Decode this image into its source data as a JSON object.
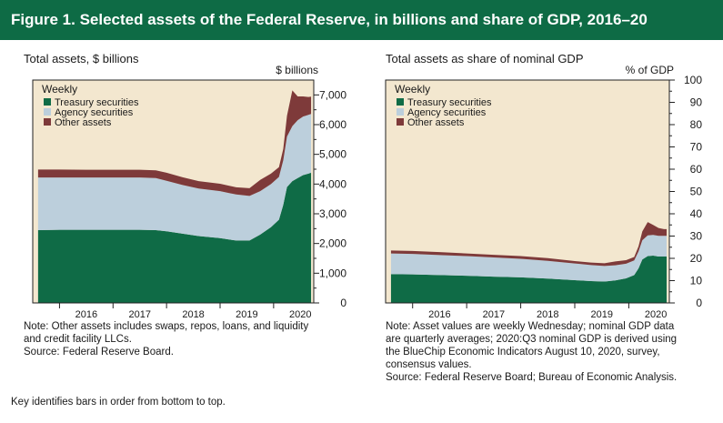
{
  "figure_title": "Figure 1. Selected assets of the Federal Reserve, in billions and share of GDP, 2016–20",
  "footer_note": "Key identifies bars in order from bottom to top.",
  "colors": {
    "banner": "#0e6b45",
    "treasury": "#0f6b46",
    "agency": "#bccfdc",
    "other": "#7e3a3a",
    "plot_bg": "#f3e7cf"
  },
  "chart_data": [
    {
      "type": "area",
      "title": "Total assets, $ billions",
      "ylabel": "$ billions",
      "legend_title": "Weekly",
      "legend_position": "top-left",
      "xlim": [
        2015.5,
        2020.75
      ],
      "ylim": [
        0,
        7500
      ],
      "x_ticks": [
        2016,
        2017,
        2018,
        2019,
        2020
      ],
      "y_ticks": [
        0,
        1000,
        2000,
        3000,
        4000,
        5000,
        6000,
        7000
      ],
      "y_tick_labels": [
        "0",
        "1,000",
        "2,000",
        "3,000",
        "4,000",
        "5,000",
        "6,000",
        "7,000"
      ],
      "x": [
        2015.6,
        2016.0,
        2016.5,
        2017.0,
        2017.5,
        2017.8,
        2018.0,
        2018.3,
        2018.6,
        2019.0,
        2019.3,
        2019.55,
        2019.75,
        2019.95,
        2020.1,
        2020.18,
        2020.25,
        2020.35,
        2020.45,
        2020.55,
        2020.65,
        2020.7
      ],
      "series": [
        {
          "name": "Treasury securities",
          "values": [
            2450,
            2460,
            2460,
            2460,
            2460,
            2450,
            2410,
            2330,
            2250,
            2180,
            2100,
            2100,
            2300,
            2550,
            2800,
            3300,
            3900,
            4100,
            4200,
            4300,
            4350,
            4380
          ]
        },
        {
          "name": "Agency securities",
          "values": [
            1770,
            1760,
            1760,
            1760,
            1760,
            1750,
            1700,
            1640,
            1600,
            1580,
            1550,
            1500,
            1460,
            1450,
            1440,
            1500,
            1700,
            1850,
            1950,
            1970,
            1980,
            1980
          ]
        },
        {
          "name": "Other assets",
          "values": [
            270,
            270,
            260,
            260,
            260,
            260,
            270,
            260,
            250,
            250,
            240,
            260,
            380,
            350,
            330,
            380,
            700,
            1200,
            800,
            680,
            600,
            580
          ]
        }
      ]
    },
    {
      "type": "area",
      "title": "Total assets as share of nominal GDP",
      "ylabel": "% of GDP",
      "legend_title": "Weekly",
      "legend_position": "top-left",
      "xlim": [
        2015.5,
        2020.75
      ],
      "ylim": [
        0,
        100
      ],
      "x_ticks": [
        2016,
        2017,
        2018,
        2019,
        2020
      ],
      "y_ticks": [
        0,
        10,
        20,
        30,
        40,
        50,
        60,
        70,
        80,
        90,
        100
      ],
      "y_tick_labels": [
        "0",
        "10",
        "20",
        "30",
        "40",
        "50",
        "60",
        "70",
        "80",
        "90",
        "100"
      ],
      "x": [
        2015.6,
        2016.0,
        2016.5,
        2017.0,
        2017.5,
        2018.0,
        2018.5,
        2019.0,
        2019.3,
        2019.55,
        2019.75,
        2019.95,
        2020.1,
        2020.18,
        2020.25,
        2020.35,
        2020.45,
        2020.55,
        2020.65,
        2020.7
      ],
      "series": [
        {
          "name": "Treasury securities",
          "values": [
            12.9,
            12.8,
            12.5,
            12.2,
            11.8,
            11.5,
            10.9,
            10.2,
            9.8,
            9.6,
            10.1,
            11.0,
            12.5,
            15.5,
            19.5,
            21.0,
            21.2,
            20.8,
            20.8,
            20.8
          ]
        },
        {
          "name": "Agency securities",
          "values": [
            9.3,
            9.2,
            9.0,
            8.8,
            8.6,
            8.3,
            8.0,
            7.5,
            7.2,
            7.0,
            6.8,
            6.6,
            6.6,
            7.6,
            8.6,
            9.3,
            9.3,
            9.3,
            9.3,
            9.3
          ]
        },
        {
          "name": "Other assets",
          "values": [
            1.3,
            1.3,
            1.3,
            1.2,
            1.2,
            1.2,
            1.2,
            1.1,
            1.1,
            1.2,
            1.7,
            1.6,
            1.5,
            2.3,
            4.0,
            6.0,
            4.5,
            3.5,
            3.0,
            3.0
          ]
        }
      ]
    }
  ],
  "left_note": "Note: Other assets includes swaps, repos, loans, and liquidity\nand credit facility LLCs.\nSource: Federal Reserve Board.",
  "right_note": "Note: Asset values are weekly Wednesday; nominal GDP data\nare quarterly averages; 2020:Q3 nominal GDP is derived using\nthe BlueChip Economic Indicators August 10, 2020, survey,\nconsensus values.\nSource: Federal Reserve Board; Bureau of Economic Analysis."
}
